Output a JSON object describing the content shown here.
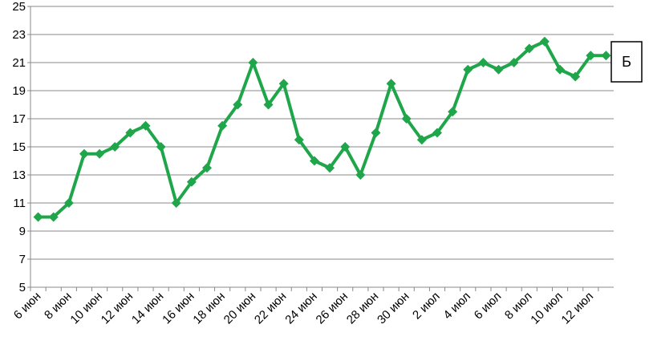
{
  "chart_data": {
    "type": "line",
    "categories": [
      "6 июн",
      null,
      "8 июн",
      null,
      "10 июн",
      null,
      "12 июн",
      null,
      "14 июн",
      null,
      "16 июн",
      null,
      "18 июн",
      null,
      "20 июн",
      null,
      "22 июн",
      null,
      "24 июн",
      null,
      "26 июн",
      null,
      "28 июн",
      null,
      "30 июн",
      null,
      "2 июл",
      null,
      "4 июл",
      null,
      "6 июл",
      null,
      "8 июл",
      null,
      "10 июл",
      null,
      "12 июл",
      null
    ],
    "series": [
      {
        "name": "Б",
        "color": "#1fa64a",
        "values": [
          10,
          10,
          11,
          14.5,
          14.5,
          15,
          16,
          16.5,
          15,
          11,
          12.5,
          13.5,
          16.5,
          18,
          21,
          18,
          19.5,
          15.5,
          14,
          13.5,
          15,
          13,
          16,
          19.5,
          17,
          15.5,
          16,
          17.5,
          20.5,
          21,
          20.5,
          21,
          22,
          22.5,
          20.5,
          20,
          21.5,
          21.5
        ]
      }
    ],
    "ylim": [
      5,
      25
    ],
    "yticks": [
      5,
      7,
      9,
      11,
      13,
      15,
      17,
      19,
      21,
      23,
      25
    ],
    "grid": true,
    "legend": "right"
  }
}
